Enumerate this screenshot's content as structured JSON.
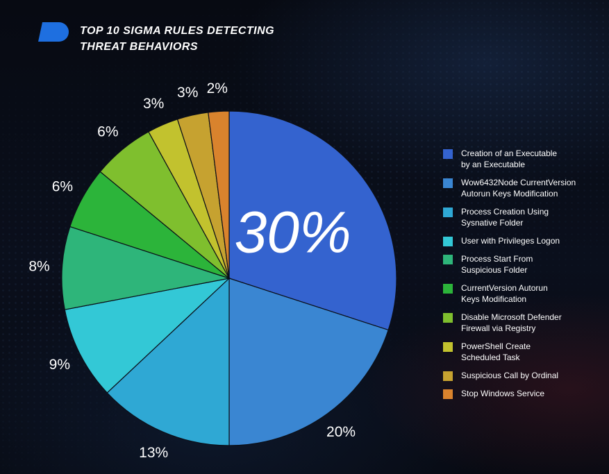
{
  "header": {
    "title_line1": "TOP 10 SIGMA RULES DETECTING",
    "title_line2": "THREAT BEHAVIORS"
  },
  "chart_data": {
    "type": "pie",
    "title": "TOP 10 SIGMA RULES DETECTING THREAT BEHAVIORS",
    "legend_position": "right",
    "categories": [
      "Creation of an Executable by an Executable",
      "Wow6432Node CurrentVersion Autorun Keys Modification",
      "Process Creation Using Sysnative Folder",
      "User with Privileges Logon",
      "Process Start From Suspicious Folder",
      "CurrentVersion Autorun Keys Modification",
      "Disable Microsoft Defender Firewall via Registry",
      "PowerShell Create Scheduled Task",
      "Suspicious Call by Ordinal",
      "Stop Windows Service"
    ],
    "legend_labels": [
      "Creation of an Executable\nby an Executable",
      "Wow6432Node CurrentVersion\nAutorun Keys Modification",
      "Process Creation Using\nSysnative Folder",
      "User with Privileges Logon",
      "Process Start From\nSuspicious Folder",
      "CurrentVersion Autorun\nKeys Modification",
      "Disable Microsoft Defender\nFirewall via Registry",
      "PowerShell Create\nScheduled Task",
      "Suspicious Call by Ordinal",
      "Stop Windows Service"
    ],
    "values": [
      30,
      20,
      13,
      9,
      8,
      6,
      6,
      3,
      3,
      2
    ],
    "data_labels": [
      "30%",
      "20%",
      "13%",
      "9%",
      "8%",
      "6%",
      "6%",
      "3%",
      "3%",
      "2%"
    ],
    "colors": [
      "#3463cf",
      "#3a86d2",
      "#2fa8d4",
      "#33c8d6",
      "#2eb57a",
      "#2cb43a",
      "#7fbf2e",
      "#c2c22e",
      "#c6a230",
      "#d9832d"
    ],
    "start_angle_deg": 0,
    "direction": "clockwise"
  }
}
